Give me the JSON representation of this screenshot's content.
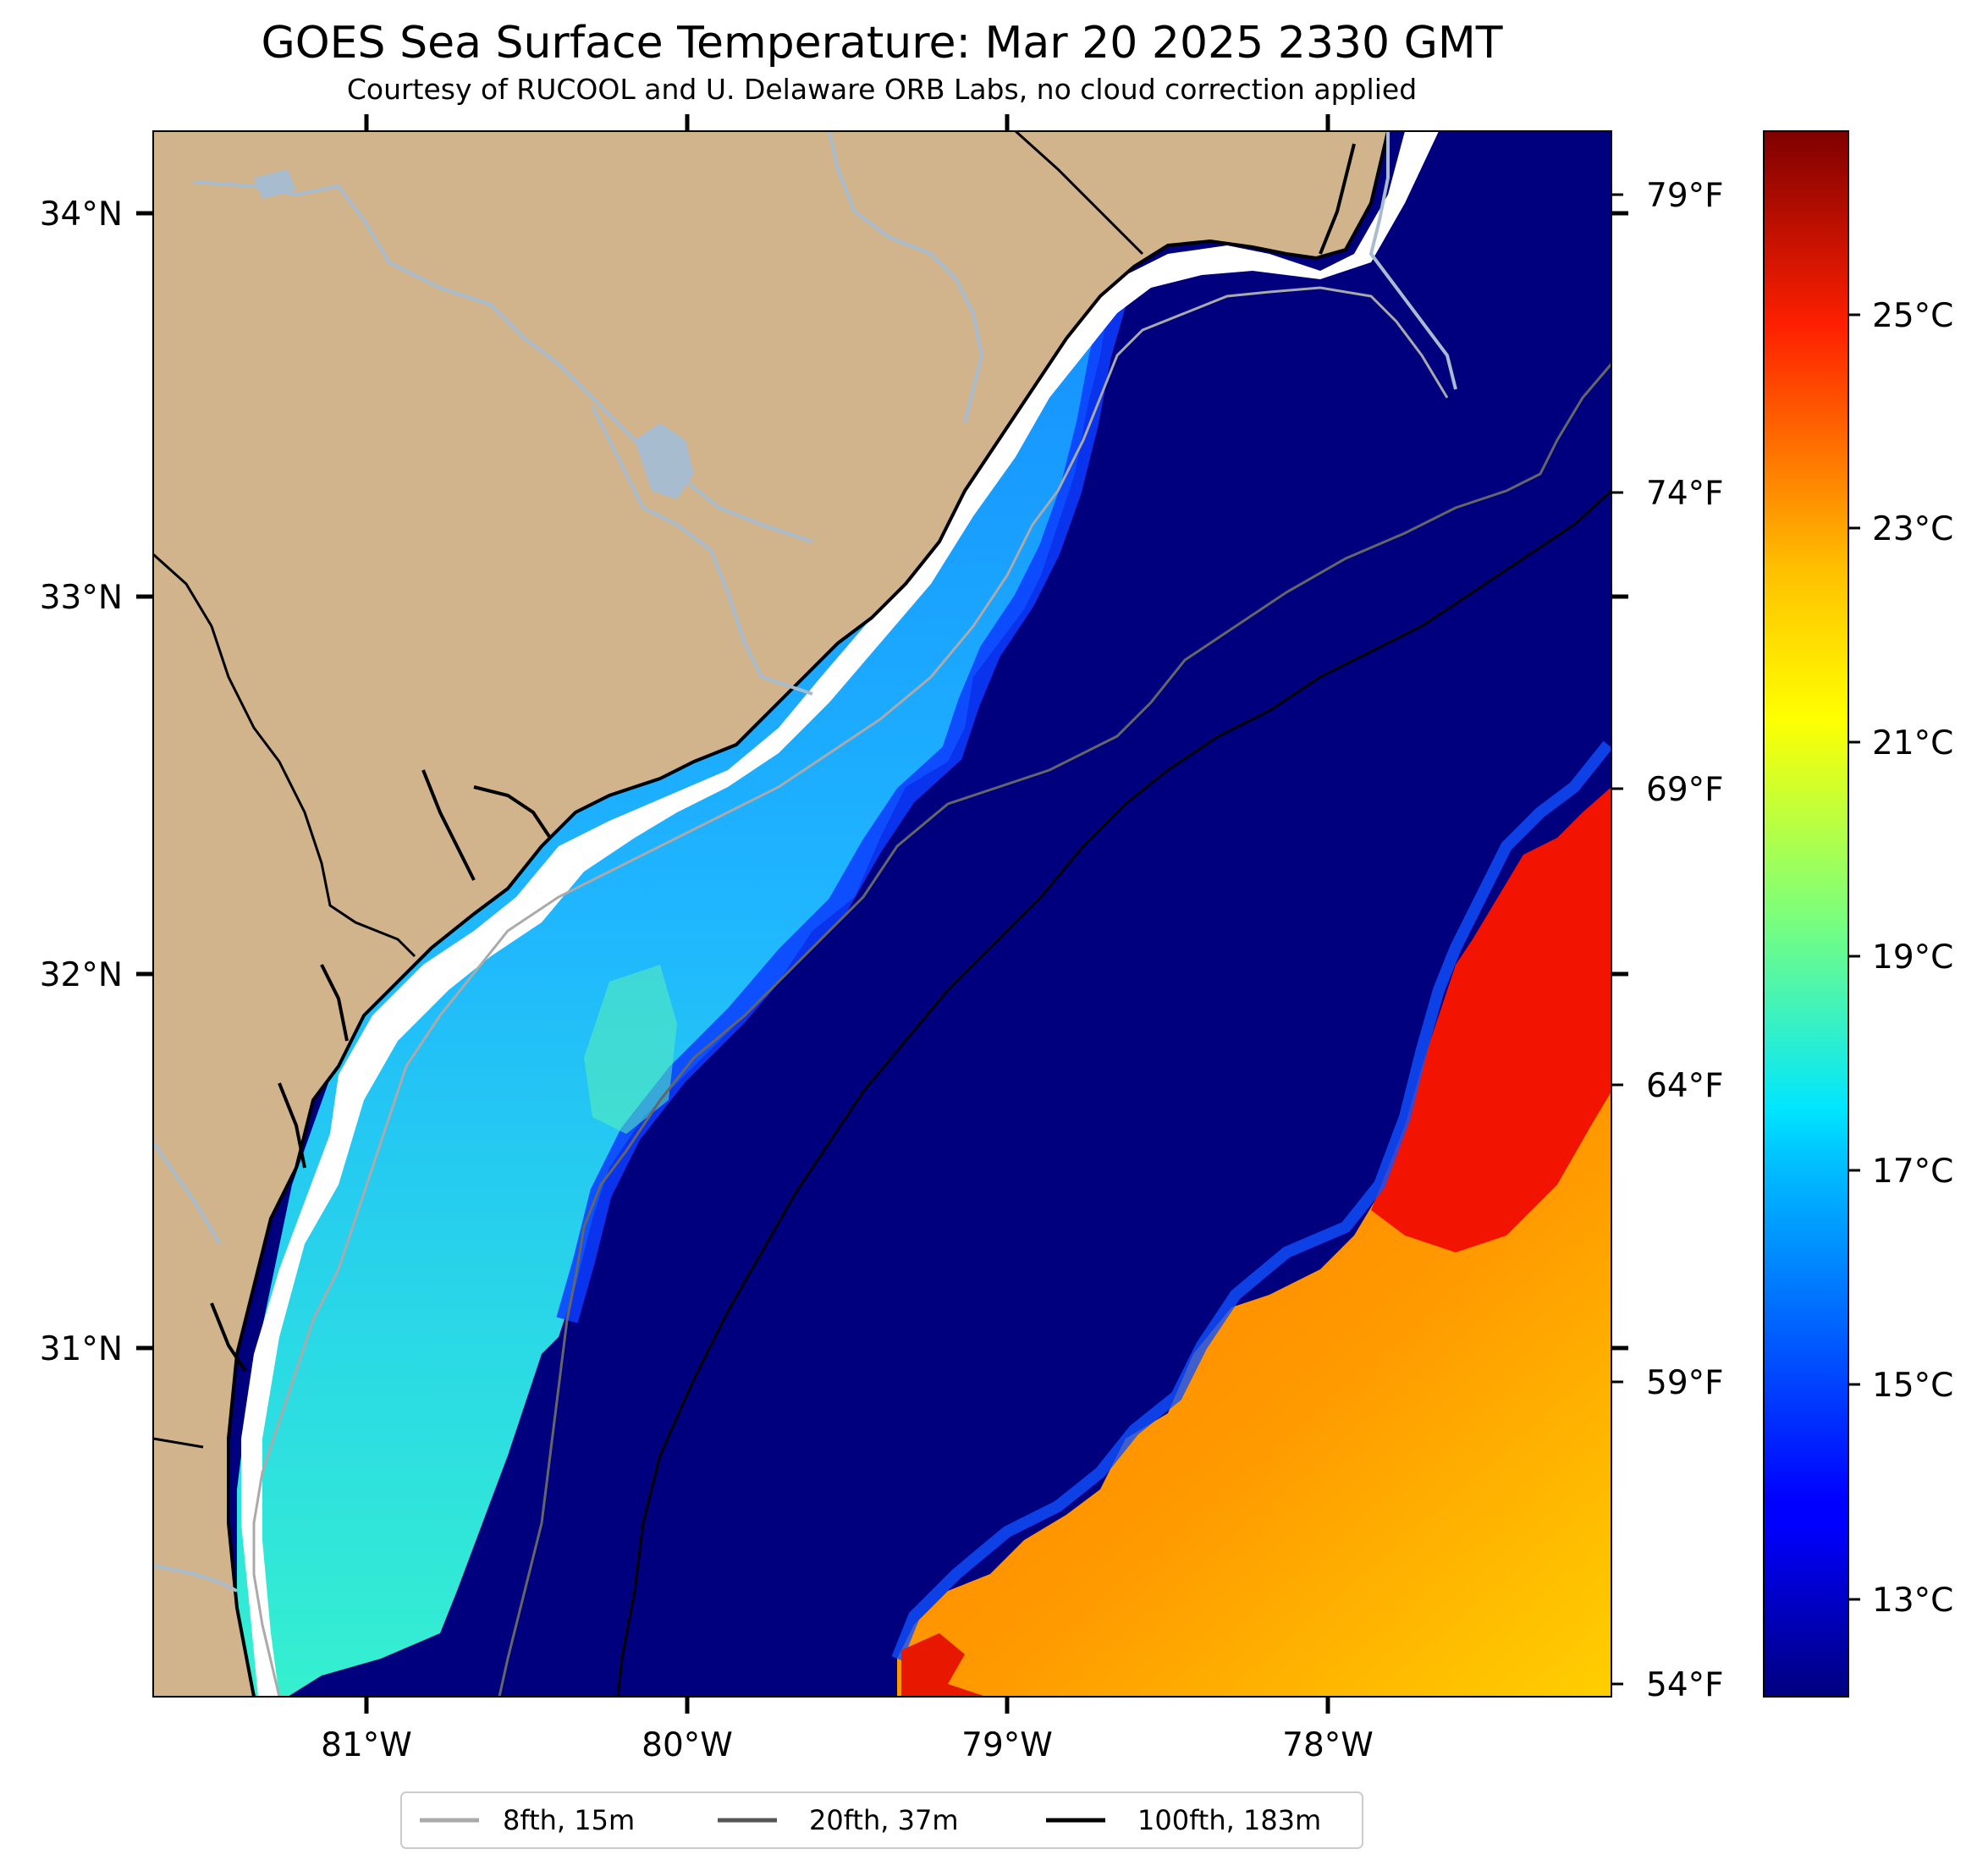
{
  "title": "GOES Sea Surface Temperature: Mar 20 2025 2330 GMT",
  "subtitle": "Courtesy of RUCOOL and U. Delaware ORB Labs, no cloud correction applied",
  "axes": {
    "lon_ticks": [
      "81°W",
      "80°W",
      "79°W",
      "78°W"
    ],
    "lat_ticks": [
      "34°N",
      "33°N",
      "32°N",
      "31°N"
    ],
    "fahrenheit_ticks": [
      "79°F",
      "74°F",
      "69°F",
      "64°F",
      "59°F",
      "54°F"
    ]
  },
  "colorbar": {
    "ticks": [
      "25°C",
      "23°C",
      "21°C",
      "19°C",
      "17°C",
      "15°C",
      "13°C"
    ],
    "range_c": [
      12,
      27
    ],
    "colormap": "jet"
  },
  "legend": {
    "items": [
      {
        "label": "8fth, 15m",
        "color": "#aaaaaa"
      },
      {
        "label": "20fth, 37m",
        "color": "#555555"
      },
      {
        "label": "100fth, 183m",
        "color": "#000000"
      }
    ]
  },
  "colors": {
    "land": "#d2b48c",
    "ocean_cold": "#00007f",
    "shelf_blue": "#1e90ff",
    "shelf_cyan": "#30e0d8",
    "gulf_stream": "#f21400",
    "warm_orange": "#ff8c00",
    "warm_yellow": "#ffd000",
    "river": "#a8bccf",
    "no_data": "#ffffff"
  }
}
